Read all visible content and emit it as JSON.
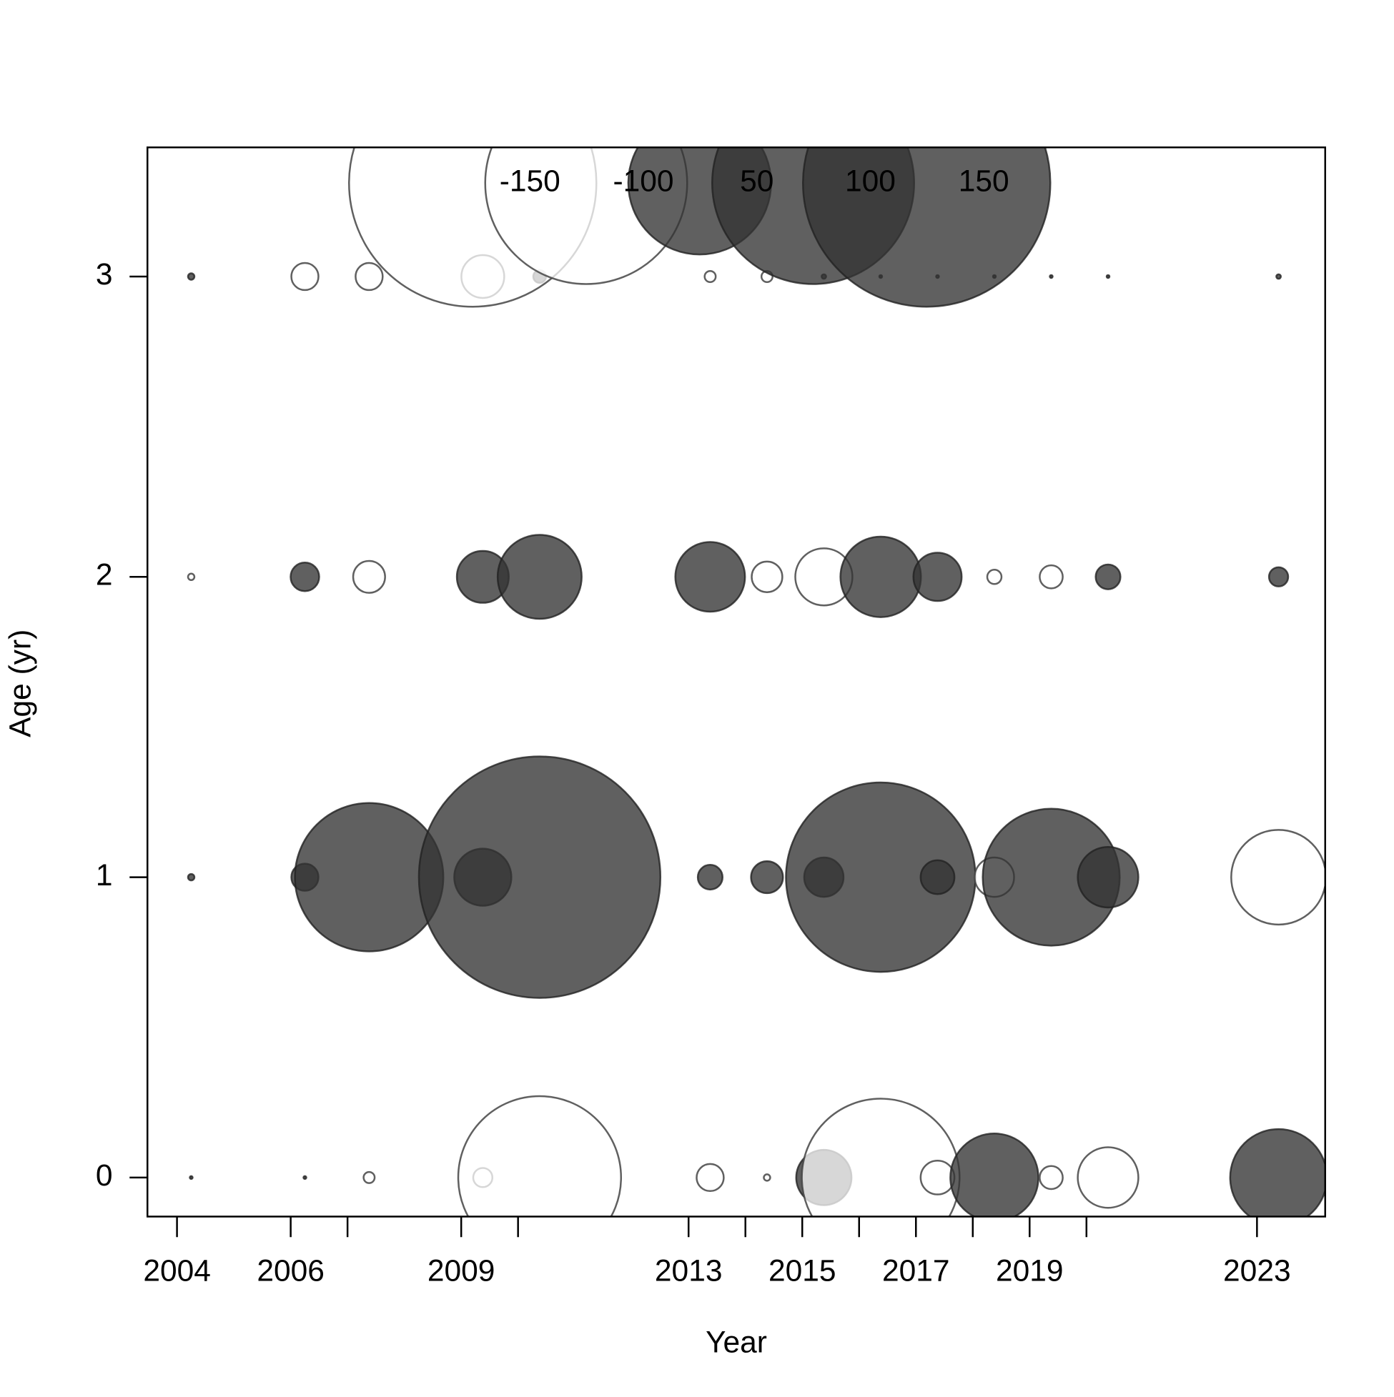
{
  "chart_data": {
    "type": "bubble",
    "x_label": "Year",
    "y_label": "Age (yr)",
    "x": [
      2004.25,
      2006.25,
      2007.38,
      2009.38,
      2010.38,
      2013.38,
      2014.38,
      2015.38,
      2016.38,
      2017.38,
      2018.38,
      2019.38,
      2020.38,
      2023.38
    ],
    "ages": [
      0,
      1,
      2,
      3
    ],
    "values": [
      [
        0.02,
        0.02,
        -0.3,
        -0.9,
        -65,
        -1.8,
        -0.1,
        7.5,
        -61,
        -2.8,
        19,
        -1.3,
        -9,
        23
      ],
      [
        0.1,
        1.8,
        54,
        8,
        143,
        1.5,
        2.5,
        3.8,
        88,
        2.8,
        -3.8,
        46,
        9,
        -22
      ],
      [
        -0.1,
        2.0,
        -2.5,
        6.6,
        17.3,
        11.9,
        -2.3,
        -8,
        15.9,
        5.7,
        -0.5,
        -1.3,
        1.5,
        0.9
      ],
      [
        0.1,
        -1.8,
        -1.8,
        -4.5,
        0.4,
        -0.3,
        -0.3,
        0.05,
        0.02,
        0.02,
        0.02,
        0.02,
        0.02,
        0.05
      ]
    ],
    "legend_values": [
      -150,
      -100,
      50,
      100,
      150
    ],
    "positive_color": "#333333",
    "negative_color": "#ffffff",
    "xlim": [
      2003.48,
      2024.2
    ],
    "ylim": [
      -0.13,
      3.43
    ],
    "xticks": [
      2004,
      2006,
      2009,
      2013,
      2015,
      2017,
      2019,
      2023
    ],
    "xminorticks": [
      2007,
      2010,
      2014,
      2016,
      2018,
      2020
    ],
    "yticks": [
      0,
      1,
      2,
      3
    ]
  }
}
